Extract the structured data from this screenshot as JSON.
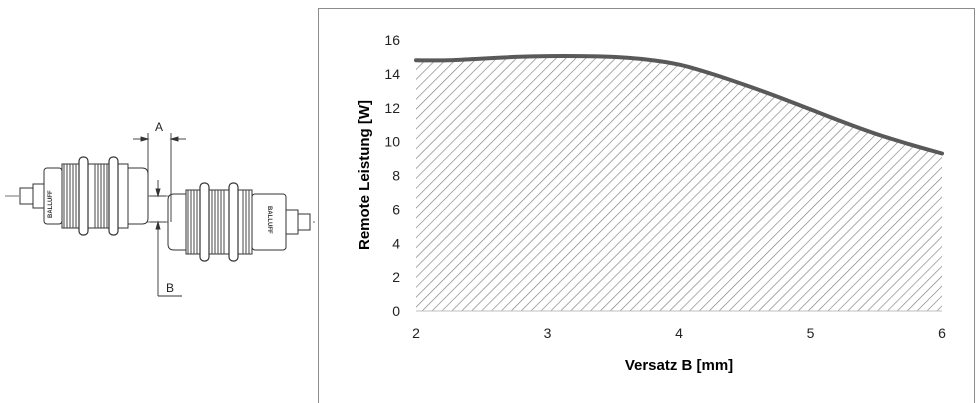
{
  "drawing": {
    "dim_a_label": "A",
    "dim_b_label": "B",
    "brand_text": "BALLUFF"
  },
  "chart_data": {
    "type": "area",
    "title": "",
    "xlabel": "Versatz B [mm]",
    "ylabel": "Remote Leistung [W]",
    "xlim": [
      2,
      6
    ],
    "ylim": [
      0,
      16
    ],
    "x_ticks": [
      "2",
      "3",
      "4",
      "5",
      "6"
    ],
    "y_ticks": [
      "0",
      "2",
      "4",
      "6",
      "8",
      "10",
      "12",
      "14",
      "16"
    ],
    "grid": false,
    "legend": "none",
    "fill": "diagonal-hatch",
    "line_color": "#595959",
    "hatch_color": "#7f7f7f",
    "series": [
      {
        "x": [
          2.0,
          2.25,
          2.5,
          2.75,
          3.0,
          3.25,
          3.5,
          3.75,
          4.0,
          4.25,
          4.5,
          4.75,
          5.0,
          5.25,
          5.5,
          5.75,
          6.0
        ],
        "values": [
          14.8,
          14.8,
          14.9,
          15.0,
          15.05,
          15.05,
          15.0,
          14.85,
          14.55,
          14.0,
          13.35,
          12.65,
          11.9,
          11.15,
          10.45,
          9.85,
          9.3
        ]
      }
    ]
  }
}
